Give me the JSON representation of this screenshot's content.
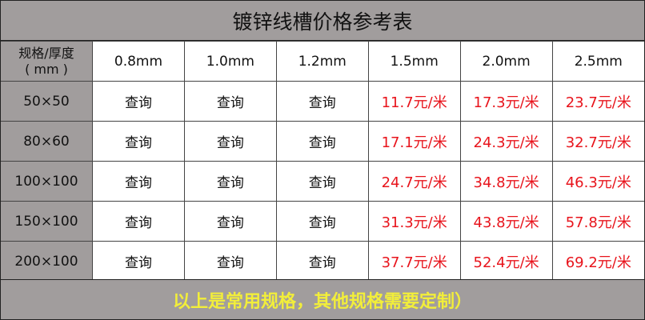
{
  "title": "镀锌线槽价格参考表",
  "header": {
    "corner_line1": "规格/厚度",
    "corner_line2": "( mm )",
    "thicknesses": [
      "0.8mm",
      "1.0mm",
      "1.2mm",
      "1.5mm",
      "2.0mm",
      "2.5mm"
    ]
  },
  "rows": [
    {
      "spec": "50×50",
      "cells": [
        "查询",
        "查询",
        "查询",
        "11.7元/米",
        "17.3元/米",
        "23.7元/米"
      ]
    },
    {
      "spec": "80×60",
      "cells": [
        "查询",
        "查询",
        "查询",
        "17.1元/米",
        "24.3元/米",
        "32.7元/米"
      ]
    },
    {
      "spec": "100×100",
      "cells": [
        "查询",
        "查询",
        "查询",
        "24.7元/米",
        "34.8元/米",
        "46.3元/米"
      ]
    },
    {
      "spec": "150×100",
      "cells": [
        "查询",
        "查询",
        "查询",
        "31.3元/米",
        "43.8元/米",
        "57.8元/米"
      ]
    },
    {
      "spec": "200×100",
      "cells": [
        "查询",
        "查询",
        "查询",
        "37.7元/米",
        "52.4元/米",
        "69.2元/米"
      ]
    }
  ],
  "footer": "以上是常用规格，其他规格需要定制）",
  "colors": {
    "header_bg": "#a19d9d",
    "price_text": "#e8141c",
    "footer_text": "#f2ee3a"
  }
}
